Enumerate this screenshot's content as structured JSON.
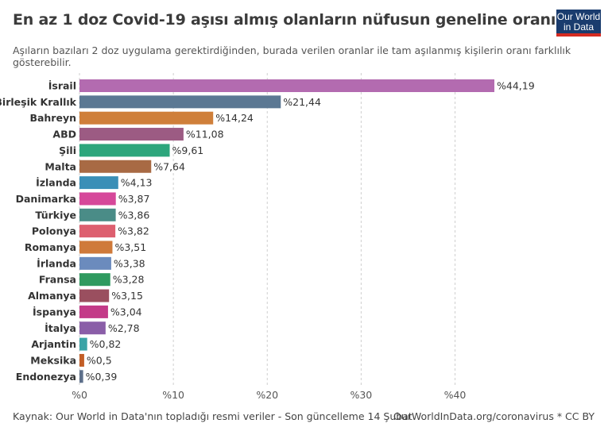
{
  "header": {
    "title": "En az 1 doz Covid-19 aşısı almış olanların nüfusun geneline oranı",
    "subtitle": "Aşıların bazıları 2 doz uygulama gerektirdiğinden, burada verilen oranlar ile tam aşılanmış kişilerin oranı farklılık gösterebilir.",
    "logo_line1": "Our World",
    "logo_line2": "in Data"
  },
  "footer": {
    "source": "Kaynak: Our World in Data'nın topladığı resmi veriler - Son güncelleme 14 Şubat",
    "credit": "OurWorldInData.org/coronavirus * CC BY"
  },
  "colors": {
    "logo_bg": "#1a3c6e",
    "logo_accent": "#d42b21"
  },
  "chart_data": {
    "type": "bar",
    "orientation": "horizontal",
    "categories": [
      "İsrail",
      "Birleşik Krallık",
      "Bahreyn",
      "ABD",
      "Şili",
      "Malta",
      "İzlanda",
      "Danimarka",
      "Türkiye",
      "Polonya",
      "Romanya",
      "İrlanda",
      "Fransa",
      "Almanya",
      "İspanya",
      "İtalya",
      "Arjantin",
      "Meksika",
      "Endonezya"
    ],
    "values": [
      44.19,
      21.44,
      14.24,
      11.08,
      9.61,
      7.64,
      4.13,
      3.87,
      3.86,
      3.82,
      3.51,
      3.38,
      3.28,
      3.15,
      3.04,
      2.78,
      0.82,
      0.5,
      0.39
    ],
    "value_labels": [
      "%44,19",
      "%21,44",
      "%14,24",
      "%11,08",
      "%9,61",
      "%7,64",
      "%4,13",
      "%3,87",
      "%3,86",
      "%3,82",
      "%3,51",
      "%3,38",
      "%3,28",
      "%3,15",
      "%3,04",
      "%2,78",
      "%0,82",
      "%0,5",
      "%0,39"
    ],
    "bar_colors": [
      "#b36bb0",
      "#5b7893",
      "#cf7f3a",
      "#9c5b83",
      "#2da67c",
      "#a86a44",
      "#3a8fb7",
      "#d6489a",
      "#4a8c87",
      "#dd5f6f",
      "#cf7a3a",
      "#6b8bbd",
      "#2f9a5f",
      "#9a4f5f",
      "#c33a88",
      "#8a5ea8",
      "#3aa3a6",
      "#c25e26",
      "#5d6f8a"
    ],
    "x_ticks": [
      0,
      10,
      20,
      30,
      40
    ],
    "x_tick_labels": [
      "%0",
      "%10",
      "%20",
      "%30",
      "%40"
    ],
    "xlim": [
      0,
      44.19
    ],
    "grid": "vertical-dashed",
    "xlabel": "",
    "ylabel": ""
  }
}
